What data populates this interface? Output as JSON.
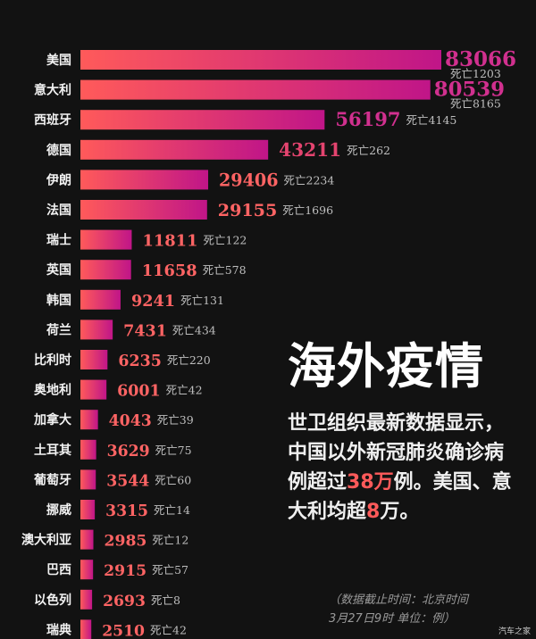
{
  "chart_data": {
    "type": "bar",
    "orientation": "horizontal",
    "categories": [
      "美国",
      "意大利",
      "西班牙",
      "德国",
      "伊朗",
      "法国",
      "瑞士",
      "英国",
      "韩国",
      "荷兰",
      "比利时",
      "奥地利",
      "加拿大",
      "土耳其",
      "葡萄牙",
      "挪威",
      "澳大利亚",
      "巴西",
      "以色列",
      "瑞典"
    ],
    "values": [
      83066,
      80539,
      56197,
      43211,
      29406,
      29155,
      11811,
      11658,
      9241,
      7431,
      6235,
      6001,
      4043,
      3629,
      3544,
      3315,
      2985,
      2915,
      2693,
      2510
    ],
    "deaths": [
      "死亡1203",
      "死亡8165",
      "死亡4145",
      "死亡262",
      "死亡2234",
      "死亡1696",
      "死亡122",
      "死亡578",
      "死亡131",
      "死亡434",
      "死亡220",
      "死亡42",
      "死亡39",
      "死亡75",
      "死亡60",
      "死亡14",
      "死亡12",
      "死亡57",
      "死亡8",
      "死亡42"
    ],
    "gradient_colors": [
      "#ff5a5a",
      "#c01588"
    ]
  },
  "headline": "海外疫情",
  "summary": {
    "p1": "世卫组织最新数据显示，中国以外新冠肺炎确诊病例超过",
    "h1": "38万",
    "p2": "例。美国、意大利均超",
    "h2": "8",
    "p3": "万。"
  },
  "note": {
    "line1": "（数据截止时间：北京时间",
    "line2": "3月27日9时 单位：例）"
  },
  "watermark": "汽车之家"
}
